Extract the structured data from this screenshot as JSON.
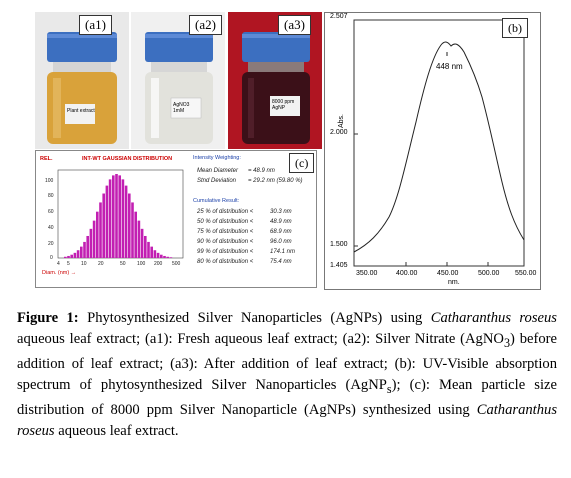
{
  "photos": [
    {
      "tag": "(a1)",
      "jar_label": "Plant extract",
      "liquid": "#d9a23a",
      "bg": "#eaeaea"
    },
    {
      "tag": "(a2)",
      "jar_label": "AgNO3 1mM",
      "liquid": "#e6e6e0",
      "bg": "#efefef"
    },
    {
      "tag": "(a3)",
      "jar_label": "8000 ppm AgNP",
      "liquid": "#3b1018",
      "bg": "#b01522"
    }
  ],
  "panel_b": {
    "tag": "(b)",
    "peak_label": "448 nm",
    "y_title": "Abs.",
    "x_title": "nm.",
    "y_ticks": [
      "2.507",
      "2.000",
      "1.500",
      "1.405"
    ],
    "x_ticks": [
      "350.00",
      "400.00",
      "450.00",
      "500.00",
      "550.00"
    ]
  },
  "panel_c": {
    "tag": "(c)",
    "header_left": "REL.",
    "title": "INT-WT GAUSSIAN DISTRIBUTION",
    "y_ticks": [
      "100",
      "80",
      "60",
      "40",
      "20",
      "0"
    ],
    "x_ticks": [
      "4",
      "5",
      "10",
      "20",
      "50",
      "100",
      "200",
      "500"
    ],
    "diam_label": "Diam. (nm) →",
    "intensity_title": "Intensity Weighting:",
    "mean_label": "Mean Diameter",
    "mean_value": "= 48.9 nm",
    "std_label": "Stnd Deviation",
    "std_value": "= 29.2 nm (59.80 %)",
    "cumulative_title": "Cumulative Result:",
    "cumulative": [
      {
        "label": "25 % of distribution <",
        "value": "30.3 nm"
      },
      {
        "label": "50 % of distribution <",
        "value": "48.9 nm"
      },
      {
        "label": "75 % of distribution <",
        "value": "68.9 nm"
      },
      {
        "label": "90 % of distribution <",
        "value": "96.0 nm"
      },
      {
        "label": "99 % of distribution <",
        "value": "174.1 nm"
      },
      {
        "label": "80 % of distribution <",
        "value": "75.4 nm"
      }
    ]
  },
  "caption": {
    "fig": "Figure 1:",
    "t1": " Phytosynthesized Silver Nanoparticles (AgNPs) using ",
    "species": "Catharanthus roseus",
    "t2": " aqueous leaf extract; (a1): Fresh aqueous leaf extract; (a2): Silver Nitrate (AgNO",
    "sub3": "3",
    "t3": ") before addition of leaf extract; (a3): After addition of leaf extract; (b): UV-Visible absorption spectrum of phytosynthesized Silver Nanoparticles (AgNP",
    "subs": "s",
    "t4": "); (c): Mean particle size distribution of 8000 ppm Silver Nanoparticle (AgNPs) synthesized using ",
    "species2": "Catharanthus roseus",
    "t5": " aqueous leaf extract."
  }
}
